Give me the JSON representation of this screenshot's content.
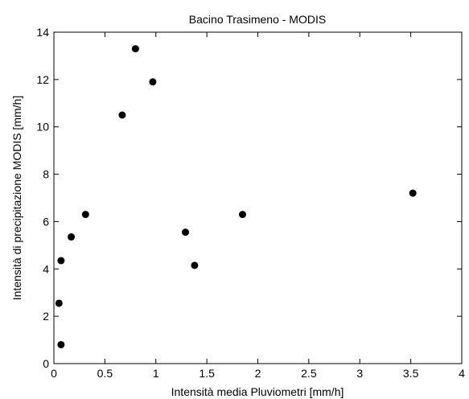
{
  "chart_data": {
    "type": "scatter",
    "title": "Bacino Trasimeno - MODIS",
    "xlabel": "Intensità media Pluviometri [mm/h]",
    "ylabel": "Intensità di precipitazione MODIS [mm/h]",
    "xlim": [
      0,
      4
    ],
    "ylim": [
      0,
      14
    ],
    "xticks": [
      "0",
      "0.5",
      "1",
      "1.5",
      "2",
      "2.5",
      "3",
      "3.5",
      "4"
    ],
    "yticks": [
      "0",
      "2",
      "4",
      "6",
      "8",
      "10",
      "12",
      "14"
    ],
    "grid": false,
    "legend": "none",
    "marker_color": "#000000",
    "series": [
      {
        "points": [
          {
            "x": 0.07,
            "y": 0.8
          },
          {
            "x": 0.05,
            "y": 2.55
          },
          {
            "x": 0.07,
            "y": 4.35
          },
          {
            "x": 0.17,
            "y": 5.35
          },
          {
            "x": 0.31,
            "y": 6.3
          },
          {
            "x": 0.67,
            "y": 10.5
          },
          {
            "x": 0.8,
            "y": 13.3
          },
          {
            "x": 0.97,
            "y": 11.9
          },
          {
            "x": 1.29,
            "y": 5.55
          },
          {
            "x": 1.38,
            "y": 4.15
          },
          {
            "x": 1.85,
            "y": 6.3
          },
          {
            "x": 3.52,
            "y": 7.2
          }
        ]
      }
    ]
  }
}
